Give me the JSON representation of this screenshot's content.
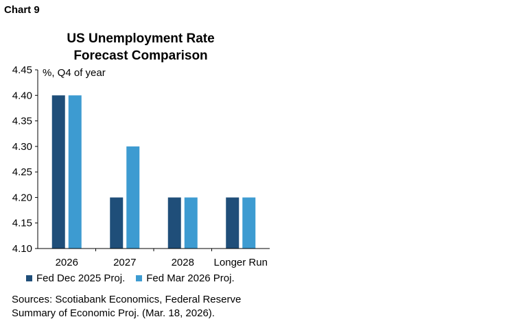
{
  "header": {
    "chart_number": "Chart 9"
  },
  "sources": {
    "line1": "Sources: Scotiabank Economics, Federal Reserve",
    "line2": "Summary of Economic Proj. (Mar. 18, 2026)."
  },
  "chart_data": {
    "type": "bar",
    "title_line1": "US Unemployment Rate",
    "title_line2": "Forecast Comparison",
    "unit_label": "%, Q4 of year",
    "categories": [
      "2026",
      "2027",
      "2028",
      "Longer Run"
    ],
    "series": [
      {
        "name": "Fed Dec 2025 Proj.",
        "values": [
          4.4,
          4.2,
          4.2,
          4.2
        ],
        "color": "#1f4e79"
      },
      {
        "name": "Fed Mar 2026 Proj.",
        "values": [
          4.4,
          4.3,
          4.2,
          4.2
        ],
        "color": "#3d9bd1"
      }
    ],
    "ylim": [
      4.1,
      4.45
    ],
    "yticks": [
      "4.10",
      "4.15",
      "4.20",
      "4.25",
      "4.30",
      "4.35",
      "4.40",
      "4.45"
    ],
    "grid": false,
    "legend_position": "bottom"
  }
}
